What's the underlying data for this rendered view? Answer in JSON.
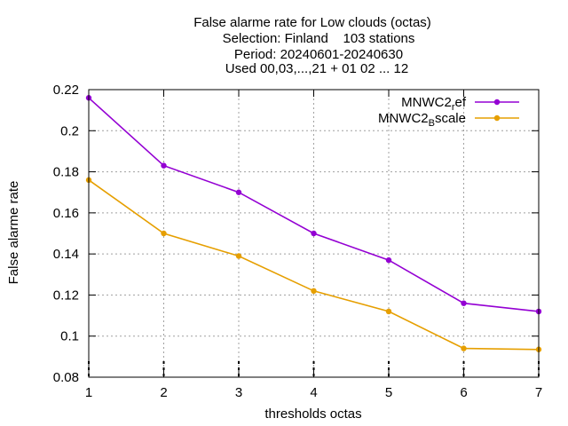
{
  "chart_data": {
    "type": "line",
    "title_lines": [
      "False alarme rate  for Low clouds (octas)",
      "Selection: Finland    103 stations",
      "Period: 20240601-20240630",
      "Used 00,03,...,21 + 01 02 ... 12"
    ],
    "xlabel": "thresholds octas",
    "ylabel": "False alarme rate",
    "x": [
      1,
      2,
      3,
      4,
      5,
      6,
      7
    ],
    "xlim": [
      1,
      7
    ],
    "ylim": [
      0.08,
      0.22
    ],
    "xticks": [
      "1",
      "2",
      "3",
      "4",
      "5",
      "6",
      "7"
    ],
    "yticks": [
      "0.08",
      "0.1",
      "0.12",
      "0.14",
      "0.16",
      "0.18",
      "0.2",
      "0.22"
    ],
    "grid": true,
    "legend_position": "top-right",
    "series": [
      {
        "name": "MNWC2_ref",
        "legend_main": "MNWC2",
        "legend_sub": "r",
        "legend_tail": "ef",
        "color": "#9400d3",
        "values": [
          0.216,
          0.183,
          0.17,
          0.15,
          0.137,
          0.116,
          0.112
        ]
      },
      {
        "name": "MNWC2_Bscale",
        "legend_main": "MNWC2",
        "legend_sub": "B",
        "legend_tail": "scale",
        "color": "#e69f00",
        "values": [
          0.176,
          0.15,
          0.139,
          0.122,
          0.112,
          0.094,
          0.0935
        ]
      }
    ]
  }
}
